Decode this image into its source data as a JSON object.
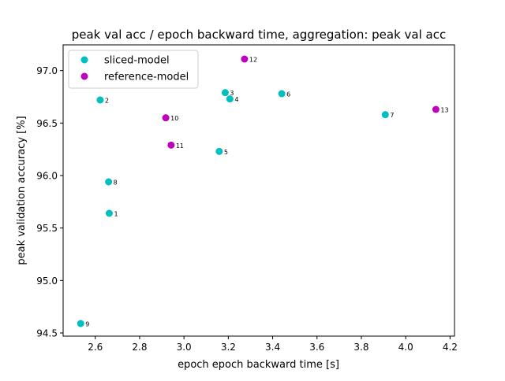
{
  "chart_data": {
    "type": "scatter",
    "title": "peak val acc / epoch backward time, aggregation: peak val acc",
    "xlabel": "epoch epoch backward time [s]",
    "ylabel": "peak validation accuracy [%]",
    "xlim": [
      2.455,
      4.22
    ],
    "ylim": [
      94.47,
      97.245
    ],
    "xticks": [
      "2.6",
      "2.8",
      "3.0",
      "3.2",
      "3.4",
      "3.6",
      "3.8",
      "4.0",
      "4.2"
    ],
    "xtick_values": [
      2.6,
      2.8,
      3.0,
      3.2,
      3.4,
      3.6,
      3.8,
      4.0,
      4.2
    ],
    "yticks": [
      "94.5",
      "95.0",
      "95.5",
      "96.0",
      "96.5",
      "97.0"
    ],
    "ytick_values": [
      94.5,
      95.0,
      95.5,
      96.0,
      96.5,
      97.0
    ],
    "grid": false,
    "legend_position": "top-left",
    "series": [
      {
        "name": "sliced-model",
        "color": "#00bfbf",
        "points": [
          {
            "x": 2.663,
            "y": 95.64,
            "label": "1"
          },
          {
            "x": 2.622,
            "y": 96.72,
            "label": "2"
          },
          {
            "x": 3.186,
            "y": 96.79,
            "label": "3"
          },
          {
            "x": 3.207,
            "y": 96.73,
            "label": "4"
          },
          {
            "x": 3.159,
            "y": 96.23,
            "label": "5"
          },
          {
            "x": 3.441,
            "y": 96.78,
            "label": "6"
          },
          {
            "x": 3.908,
            "y": 96.58,
            "label": "7"
          },
          {
            "x": 2.66,
            "y": 95.94,
            "label": "8"
          },
          {
            "x": 2.534,
            "y": 94.59,
            "label": "9"
          }
        ]
      },
      {
        "name": "reference-model",
        "color": "#bf00bf",
        "points": [
          {
            "x": 2.918,
            "y": 96.55,
            "label": "10"
          },
          {
            "x": 2.942,
            "y": 96.29,
            "label": "11"
          },
          {
            "x": 3.273,
            "y": 97.11,
            "label": "12"
          },
          {
            "x": 4.136,
            "y": 96.63,
            "label": "13"
          }
        ]
      }
    ]
  }
}
